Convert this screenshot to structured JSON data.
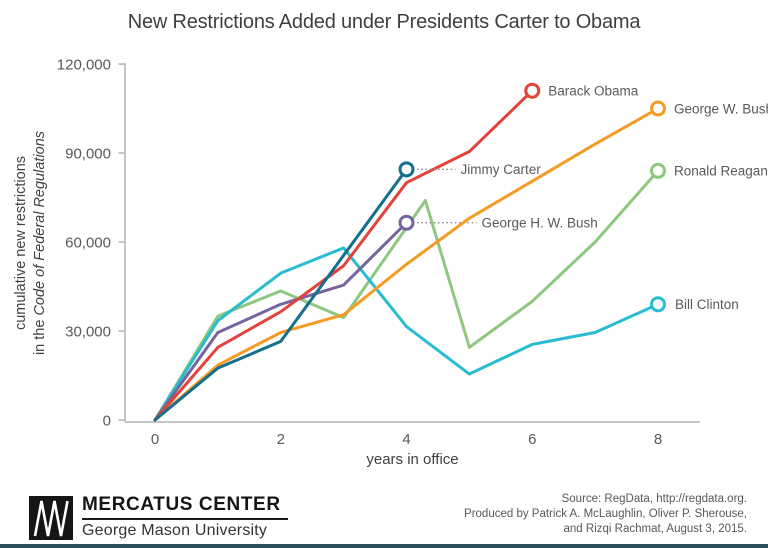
{
  "chart_data": {
    "type": "line",
    "title": "New Restrictions Added under Presidents Carter to Obama",
    "xlabel": "years in office",
    "ylabel_line1": "cumulative new restrictions",
    "ylabel_line2_prefix": "in the ",
    "ylabel_line2_italic": "Code of Federal Regulations",
    "xlim": [
      0,
      8
    ],
    "ylim": [
      0,
      120000
    ],
    "xticks": [
      0,
      2,
      4,
      6,
      8
    ],
    "yticks": [
      0,
      30000,
      60000,
      90000,
      120000
    ],
    "ytick_labels": [
      "0",
      "30,000",
      "60,000",
      "90,000",
      "120,000"
    ],
    "grid": "off",
    "legend_position": "end-of-line labels",
    "series": [
      {
        "name": "Ronald Reagan",
        "color": "#8dc87f",
        "leader": false,
        "label_offset": 16,
        "x": [
          0,
          1,
          2,
          3,
          4.3,
          5,
          6,
          7,
          8
        ],
        "values": [
          0,
          35000,
          43500,
          34500,
          74000,
          24500,
          40000,
          60000,
          84000
        ]
      },
      {
        "name": "Bill Clinton",
        "color": "#29bcd1",
        "leader": false,
        "label_offset": 17,
        "x": [
          0,
          1,
          2,
          3,
          4,
          5,
          6,
          7,
          8
        ],
        "values": [
          0,
          33500,
          49500,
          58000,
          31500,
          15500,
          25500,
          29500,
          39000
        ]
      },
      {
        "name": "George H. W. Bush",
        "color": "#75659f",
        "leader": true,
        "label_offset": 75,
        "x": [
          0,
          1,
          2,
          3,
          4
        ],
        "values": [
          0,
          29500,
          39000,
          45500,
          66500
        ]
      },
      {
        "name": "George W. Bush",
        "color": "#f49b25",
        "leader": false,
        "label_offset": 16,
        "x": [
          0,
          1,
          2,
          3,
          4,
          5,
          6,
          7,
          8
        ],
        "values": [
          0,
          18500,
          29500,
          35500,
          52500,
          68000,
          80500,
          93000,
          105000
        ]
      },
      {
        "name": "Barack Obama",
        "color": "#e2433a",
        "leader": false,
        "label_offset": 16,
        "x": [
          0,
          1,
          2,
          3,
          4,
          5,
          6
        ],
        "values": [
          0,
          24500,
          36500,
          52000,
          80000,
          90500,
          111000
        ]
      },
      {
        "name": "Jimmy Carter",
        "color": "#136f8b",
        "leader": true,
        "label_offset": 54,
        "x": [
          0,
          1,
          2,
          3,
          4
        ],
        "values": [
          0,
          17500,
          26500,
          55500,
          84500
        ]
      }
    ]
  },
  "footer": {
    "logo_line1": "MERCATUS CENTER",
    "logo_line2": "George Mason University",
    "source_lines": [
      "Source: RegData, http://regdata.org.",
      "Produced by Patrick A. McLaughlin, Oliver P. Sherouse,",
      "and Rizqi Rachmat, August 3, 2015."
    ]
  },
  "colors": {
    "axis_line": "#b3b3b3",
    "tick_text": "#58595b",
    "title_text": "#3f3f41",
    "leader_dots": "#8c8c8c",
    "bottom_bar": "#2b515c"
  }
}
